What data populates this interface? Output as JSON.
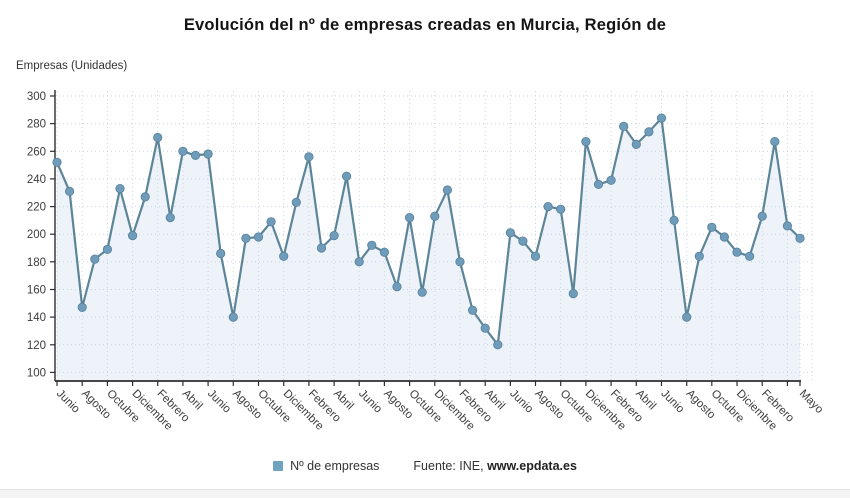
{
  "title": "Evolución del nº de empresas creadas en Murcia, Región de",
  "y_axis_title": "Empresas (Unidades)",
  "legend": {
    "series_label": "Nº de empresas",
    "source_prefix": "Fuente: INE, ",
    "source_site": "www.epdata.es"
  },
  "colors": {
    "line": "#5d8599",
    "marker": "#6e9cba",
    "marker_stroke": "#57809a",
    "area_fill": "#edf3f8",
    "grid": "#c9d6e2",
    "axis": "#2e2e2e",
    "tick_text": "#3c3c3c",
    "legend_swatch": "#6fa3c0"
  },
  "chart_data": {
    "type": "line",
    "series_name": "Nº de empresas",
    "title": "Evolución del nº de empresas creadas en Murcia, Región de",
    "ylabel": "Empresas (Unidades)",
    "ylim": [
      100,
      300
    ],
    "y_ticks": [
      300,
      280,
      260,
      240,
      220,
      200,
      180,
      160,
      140,
      120,
      100
    ],
    "grid": true,
    "legend_position": "bottom",
    "x": [
      "Junio",
      "Julio",
      "Agosto",
      "Septiembre",
      "Octubre",
      "Noviembre",
      "Diciembre",
      "Enero",
      "Febrero",
      "Marzo",
      "Abril",
      "Mayo",
      "Junio",
      "Julio",
      "Agosto",
      "Septiembre",
      "Octubre",
      "Noviembre",
      "Diciembre",
      "Enero",
      "Febrero",
      "Marzo",
      "Abril",
      "Mayo",
      "Junio",
      "Julio",
      "Agosto",
      "Septiembre",
      "Octubre",
      "Noviembre",
      "Diciembre",
      "Enero",
      "Febrero",
      "Marzo",
      "Abril",
      "Mayo",
      "Junio",
      "Julio",
      "Agosto",
      "Septiembre",
      "Octubre",
      "Noviembre",
      "Diciembre",
      "Enero",
      "Febrero",
      "Marzo",
      "Abril",
      "Mayo",
      "Junio",
      "Julio",
      "Agosto",
      "Septiembre",
      "Octubre",
      "Noviembre",
      "Diciembre",
      "Enero",
      "Febrero",
      "Marzo",
      "Abril",
      "Mayo"
    ],
    "values": [
      252,
      231,
      147,
      182,
      189,
      233,
      199,
      227,
      270,
      212,
      260,
      257,
      258,
      186,
      140,
      197,
      198,
      209,
      184,
      223,
      256,
      190,
      199,
      242,
      180,
      192,
      187,
      162,
      212,
      158,
      213,
      232,
      180,
      145,
      132,
      120,
      201,
      195,
      184,
      220,
      218,
      157,
      267,
      236,
      239,
      278,
      265,
      274,
      284,
      210,
      140,
      184,
      205,
      198,
      187,
      184,
      213,
      267,
      206,
      197
    ],
    "x_ticks": [
      {
        "i": 0,
        "label": "Junio"
      },
      {
        "i": 2,
        "label": "Agosto"
      },
      {
        "i": 4,
        "label": "Octubre"
      },
      {
        "i": 6,
        "label": "Diciembre"
      },
      {
        "i": 8,
        "label": "Febrero"
      },
      {
        "i": 10,
        "label": "Abril"
      },
      {
        "i": 12,
        "label": "Junio"
      },
      {
        "i": 14,
        "label": "Agosto"
      },
      {
        "i": 16,
        "label": "Octubre"
      },
      {
        "i": 18,
        "label": "Diciembre"
      },
      {
        "i": 20,
        "label": "Febrero"
      },
      {
        "i": 22,
        "label": "Abril"
      },
      {
        "i": 24,
        "label": "Junio"
      },
      {
        "i": 26,
        "label": "Agosto"
      },
      {
        "i": 28,
        "label": "Octubre"
      },
      {
        "i": 30,
        "label": "Diciembre"
      },
      {
        "i": 32,
        "label": "Febrero"
      },
      {
        "i": 34,
        "label": "Abril"
      },
      {
        "i": 36,
        "label": "Junio"
      },
      {
        "i": 38,
        "label": "Agosto"
      },
      {
        "i": 40,
        "label": "Octubre"
      },
      {
        "i": 42,
        "label": "Diciembre"
      },
      {
        "i": 44,
        "label": "Febrero"
      },
      {
        "i": 46,
        "label": "Abril"
      },
      {
        "i": 48,
        "label": "Junio"
      },
      {
        "i": 50,
        "label": "Agosto"
      },
      {
        "i": 52,
        "label": "Octubre"
      },
      {
        "i": 54,
        "label": "Diciembre"
      },
      {
        "i": 56,
        "label": "Febrero"
      },
      {
        "i": 58,
        "label": ""
      },
      {
        "i": 59,
        "label": "Mayo"
      }
    ]
  }
}
